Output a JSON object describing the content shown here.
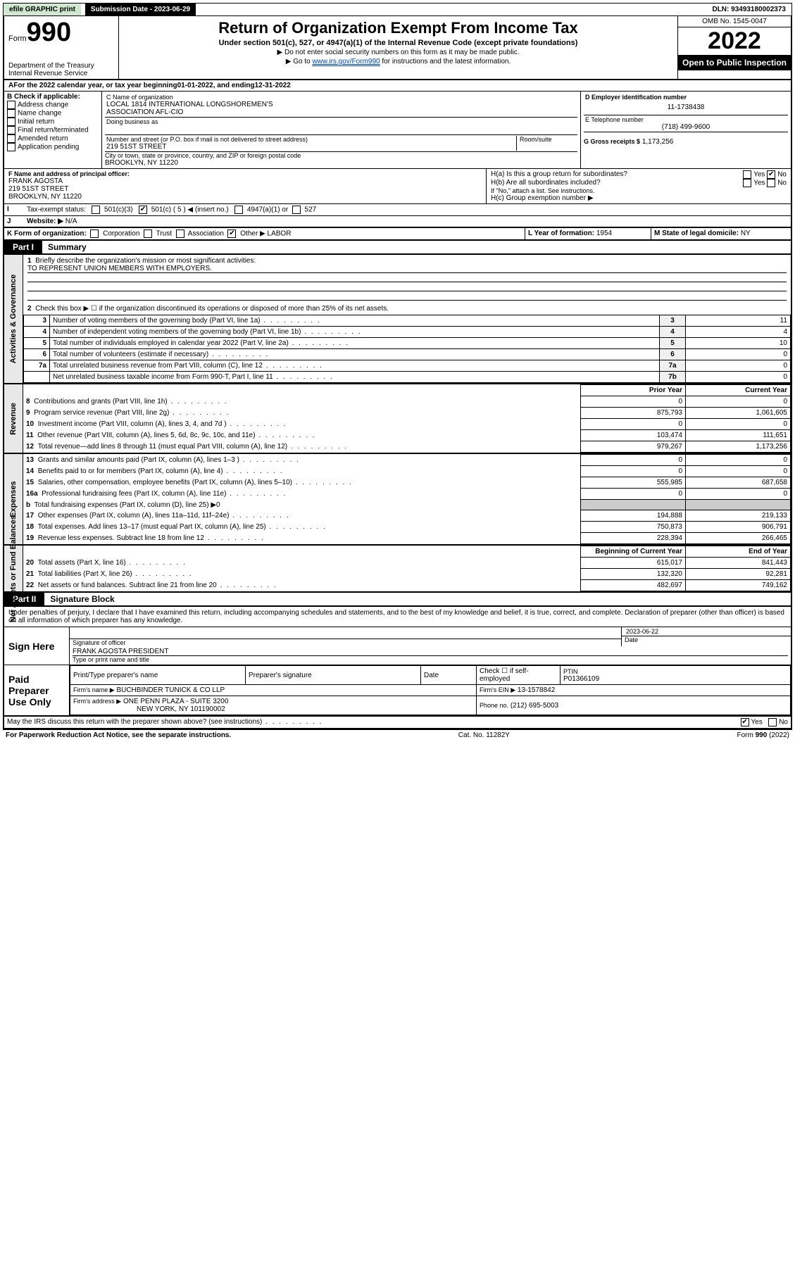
{
  "topbar": {
    "efile": "efile GRAPHIC print",
    "sub_label": "Submission Date - 2023-06-29",
    "dln": "DLN: 93493180002373"
  },
  "header": {
    "form_prefix": "Form",
    "form_no": "990",
    "dept": "Department of the Treasury",
    "irs": "Internal Revenue Service",
    "title": "Return of Organization Exempt From Income Tax",
    "sub1": "Under section 501(c), 527, or 4947(a)(1) of the Internal Revenue Code (except private foundations)",
    "note1": "▶ Do not enter social security numbers on this form as it may be made public.",
    "note2_pre": "▶ Go to ",
    "note2_link": "www.irs.gov/Form990",
    "note2_post": " for instructions and the latest information.",
    "omb": "OMB No. 1545-0047",
    "year": "2022",
    "open": "Open to Public Inspection"
  },
  "period": {
    "a_text": "For the 2022 calendar year, or tax year beginning ",
    "begin": "01-01-2022",
    "mid": " , and ending ",
    "end": "12-31-2022"
  },
  "boxB": {
    "label": "B Check if applicable:",
    "items": [
      "Address change",
      "Name change",
      "Initial return",
      "Final return/terminated",
      "Amended return",
      "Application pending"
    ]
  },
  "boxC": {
    "label": "C Name of organization",
    "name1": "LOCAL 1814 INTERNATIONAL LONGSHOREMEN'S",
    "name2": "ASSOCIATION AFL-CIO",
    "dba_label": "Doing business as",
    "addr_label": "Number and street (or P.O. box if mail is not delivered to street address)",
    "room_label": "Room/suite",
    "addr": "219 51ST STREET",
    "city_label": "City or town, state or province, country, and ZIP or foreign postal code",
    "city": "BROOKLYN, NY  11220"
  },
  "boxD": {
    "label": "D Employer identification number",
    "ein": "11-1738438"
  },
  "boxE": {
    "label": "E Telephone number",
    "phone": "(718) 499-9600"
  },
  "boxG": {
    "label": "G Gross receipts $",
    "val": "1,173,256"
  },
  "boxF": {
    "label": "F Name and address of principal officer:",
    "name": "FRANK AGOSTA",
    "addr1": "219 51ST STREET",
    "addr2": "BROOKLYN, NY  11220"
  },
  "boxH": {
    "ha": "H(a)  Is this a group return for subordinates?",
    "hb": "H(b)  Are all subordinates included?",
    "hb_note": "If \"No,\" attach a list. See instructions.",
    "hc": "H(c)  Group exemption number ▶",
    "yes": "Yes",
    "no": "No"
  },
  "taxstatus": {
    "label": "Tax-exempt status:",
    "c3": "501(c)(3)",
    "c5": "501(c) ( 5 ) ◀ (insert no.)",
    "a4947": "4947(a)(1) or",
    "s527": "527"
  },
  "website": {
    "label": "Website: ▶",
    "val": "N/A"
  },
  "boxK": {
    "label": "K Form of organization:",
    "corp": "Corporation",
    "trust": "Trust",
    "assoc": "Association",
    "other": "Other ▶",
    "other_val": "LABOR"
  },
  "boxL": {
    "label": "L Year of formation:",
    "val": "1954"
  },
  "boxM": {
    "label": "M State of legal domicile:",
    "val": "NY"
  },
  "part1": {
    "tab": "Part I",
    "title": "Summary",
    "q1": "Briefly describe the organization's mission or most significant activities:",
    "q1v": "TO REPRESENT UNION MEMBERS WITH EMPLOYERS.",
    "q2": "Check this box ▶ ☐  if the organization discontinued its operations or disposed of more than 25% of its net assets.",
    "side_gov": "Activities & Governance",
    "side_rev": "Revenue",
    "side_exp": "Expenses",
    "side_net": "Net Assets or Fund Balances",
    "col_prior": "Prior Year",
    "col_curr": "Current Year",
    "col_begin": "Beginning of Current Year",
    "col_end": "End of Year"
  },
  "lines_gov": [
    {
      "n": "3",
      "d": "Number of voting members of the governing body (Part VI, line 1a)",
      "box": "3",
      "v": "11"
    },
    {
      "n": "4",
      "d": "Number of independent voting members of the governing body (Part VI, line 1b)",
      "box": "4",
      "v": "4"
    },
    {
      "n": "5",
      "d": "Total number of individuals employed in calendar year 2022 (Part V, line 2a)",
      "box": "5",
      "v": "10"
    },
    {
      "n": "6",
      "d": "Total number of volunteers (estimate if necessary)",
      "box": "6",
      "v": "0"
    },
    {
      "n": "7a",
      "d": "Total unrelated business revenue from Part VIII, column (C), line 12",
      "box": "7a",
      "v": "0"
    },
    {
      "n": "",
      "d": "Net unrelated business taxable income from Form 990-T, Part I, line 11",
      "box": "7b",
      "v": "0"
    }
  ],
  "lines_rev": [
    {
      "n": "8",
      "d": "Contributions and grants (Part VIII, line 1h)",
      "p": "0",
      "c": "0"
    },
    {
      "n": "9",
      "d": "Program service revenue (Part VIII, line 2g)",
      "p": "875,793",
      "c": "1,061,605"
    },
    {
      "n": "10",
      "d": "Investment income (Part VIII, column (A), lines 3, 4, and 7d )",
      "p": "0",
      "c": "0"
    },
    {
      "n": "11",
      "d": "Other revenue (Part VIII, column (A), lines 5, 6d, 8c, 9c, 10c, and 11e)",
      "p": "103,474",
      "c": "111,651"
    },
    {
      "n": "12",
      "d": "Total revenue—add lines 8 through 11 (must equal Part VIII, column (A), line 12)",
      "p": "979,267",
      "c": "1,173,256"
    }
  ],
  "lines_exp": [
    {
      "n": "13",
      "d": "Grants and similar amounts paid (Part IX, column (A), lines 1–3 )",
      "p": "0",
      "c": "0"
    },
    {
      "n": "14",
      "d": "Benefits paid to or for members (Part IX, column (A), line 4)",
      "p": "0",
      "c": "0"
    },
    {
      "n": "15",
      "d": "Salaries, other compensation, employee benefits (Part IX, column (A), lines 5–10)",
      "p": "555,985",
      "c": "687,658"
    },
    {
      "n": "16a",
      "d": "Professional fundraising fees (Part IX, column (A), line 11e)",
      "p": "0",
      "c": "0"
    },
    {
      "n": "b",
      "d": "Total fundraising expenses (Part IX, column (D), line 25) ▶0",
      "p": "",
      "c": ""
    },
    {
      "n": "17",
      "d": "Other expenses (Part IX, column (A), lines 11a–11d, 11f–24e)",
      "p": "194,888",
      "c": "219,133"
    },
    {
      "n": "18",
      "d": "Total expenses. Add lines 13–17 (must equal Part IX, column (A), line 25)",
      "p": "750,873",
      "c": "906,791"
    },
    {
      "n": "19",
      "d": "Revenue less expenses. Subtract line 18 from line 12",
      "p": "228,394",
      "c": "266,465"
    }
  ],
  "lines_net": [
    {
      "n": "20",
      "d": "Total assets (Part X, line 16)",
      "p": "615,017",
      "c": "841,443"
    },
    {
      "n": "21",
      "d": "Total liabilities (Part X, line 26)",
      "p": "132,320",
      "c": "92,281"
    },
    {
      "n": "22",
      "d": "Net assets or fund balances. Subtract line 21 from line 20",
      "p": "482,697",
      "c": "749,162"
    }
  ],
  "part2": {
    "tab": "Part II",
    "title": "Signature Block",
    "decl": "Under penalties of perjury, I declare that I have examined this return, including accompanying schedules and statements, and to the best of my knowledge and belief, it is true, correct, and complete. Declaration of preparer (other than officer) is based on all information of which preparer has any knowledge."
  },
  "sign": {
    "label": "Sign Here",
    "sig_label": "Signature of officer",
    "date_label": "Date",
    "date": "2023-06-22",
    "name": "FRANK AGOSTA PRESIDENT",
    "name_label": "Type or print name and title"
  },
  "paid": {
    "label": "Paid Preparer Use Only",
    "h1": "Print/Type preparer's name",
    "h2": "Preparer's signature",
    "h3": "Date",
    "h4a": "Check ☐ if self-employed",
    "h4b": "PTIN",
    "ptin": "P01366109",
    "firm_label": "Firm's name   ▶",
    "firm": "BUCHBINDER TUNICK & CO LLP",
    "ein_label": "Firm's EIN ▶",
    "ein": "13-1578842",
    "addr_label": "Firm's address ▶",
    "addr1": "ONE PENN PLAZA - SUITE 3200",
    "addr2": "NEW YORK, NY  101190002",
    "phone_label": "Phone no.",
    "phone": "(212) 695-5003"
  },
  "discuss": {
    "q": "May the IRS discuss this return with the preparer shown above? (see instructions)",
    "yes": "Yes",
    "no": "No"
  },
  "footer": {
    "left": "For Paperwork Reduction Act Notice, see the separate instructions.",
    "mid": "Cat. No. 11282Y",
    "right": "Form 990 (2022)"
  }
}
